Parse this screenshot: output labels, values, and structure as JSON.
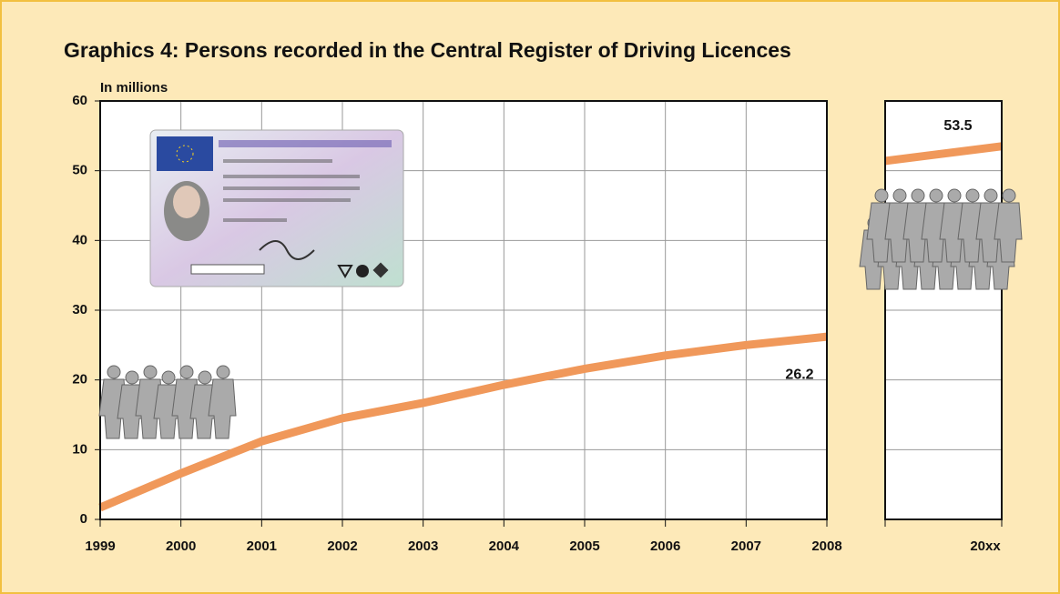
{
  "chart_data": [
    {
      "type": "line",
      "title": "Graphics 4:   Persons recorded in the Central Register of Driving Licences",
      "y_label": "In millions",
      "categories": [
        "1999",
        "2000",
        "2001",
        "2002",
        "2003",
        "2004",
        "2005",
        "2006",
        "2007",
        "2008"
      ],
      "values": [
        1.7,
        6.6,
        11.2,
        14.5,
        16.7,
        19.3,
        21.6,
        23.5,
        25.0,
        26.2
      ],
      "color": "#f0985a",
      "ylim": [
        0,
        60
      ],
      "yticks": [
        0,
        10,
        20,
        30,
        40,
        50,
        60
      ],
      "grid": true
    },
    {
      "type": "line",
      "categories": [
        null,
        "20xx"
      ],
      "values": [
        51.4,
        53.5
      ],
      "color": "#f0985a",
      "ylim": [
        0,
        60
      ],
      "grid": true
    }
  ]
}
